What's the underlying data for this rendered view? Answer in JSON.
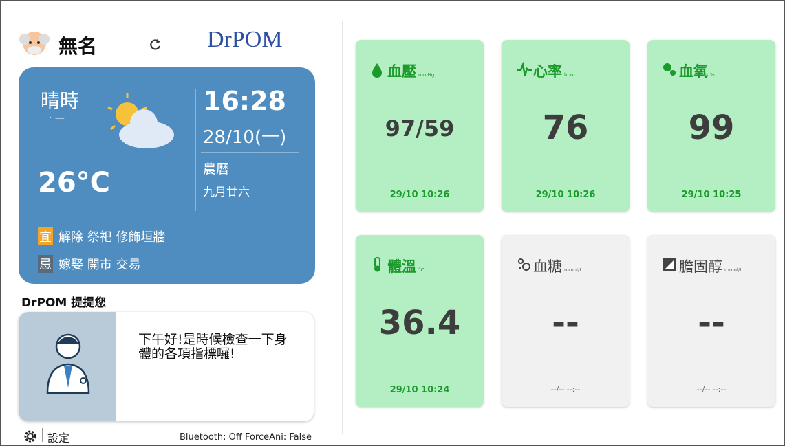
{
  "header": {
    "user": "無名",
    "logo": "DrPOM"
  },
  "weather": {
    "condition": "晴時",
    "condition_sub": "· —",
    "time": "16:28",
    "date": "28/10(一)",
    "lunar_label": "農曆",
    "lunar_date": "九月廿六",
    "temperature": "26°C",
    "good_label": "宜",
    "good_items": "解除 祭祀 修飾垣牆",
    "bad_label": "忌",
    "bad_items": "嫁娶 開市 交易"
  },
  "reminder": {
    "title": "DrPOM 提提您",
    "message": "下午好!是時候檢查一下身體的各項指標囉!"
  },
  "footer": {
    "settings": "設定",
    "status": "Bluetooth: Off ForceAni: False"
  },
  "cards": [
    {
      "title": "血壓",
      "unit": "mmHg",
      "value": "97/59",
      "time": "29/10 10:26"
    },
    {
      "title": "心率",
      "unit": "bpm",
      "value": 76,
      "time": "29/10 10:26"
    },
    {
      "title": "血氧",
      "unit": "%",
      "value": 99,
      "time": "29/10 10:25"
    },
    {
      "title": "體溫",
      "unit": "°C",
      "value": 36.4,
      "time": "29/10 10:24"
    },
    {
      "title": "血糖",
      "unit": "mmol/L",
      "value": "--",
      "time": "--/-- --:--"
    },
    {
      "title": "膽固醇",
      "unit": "mmol/L",
      "value": "--",
      "time": "--/-- --:--"
    }
  ]
}
